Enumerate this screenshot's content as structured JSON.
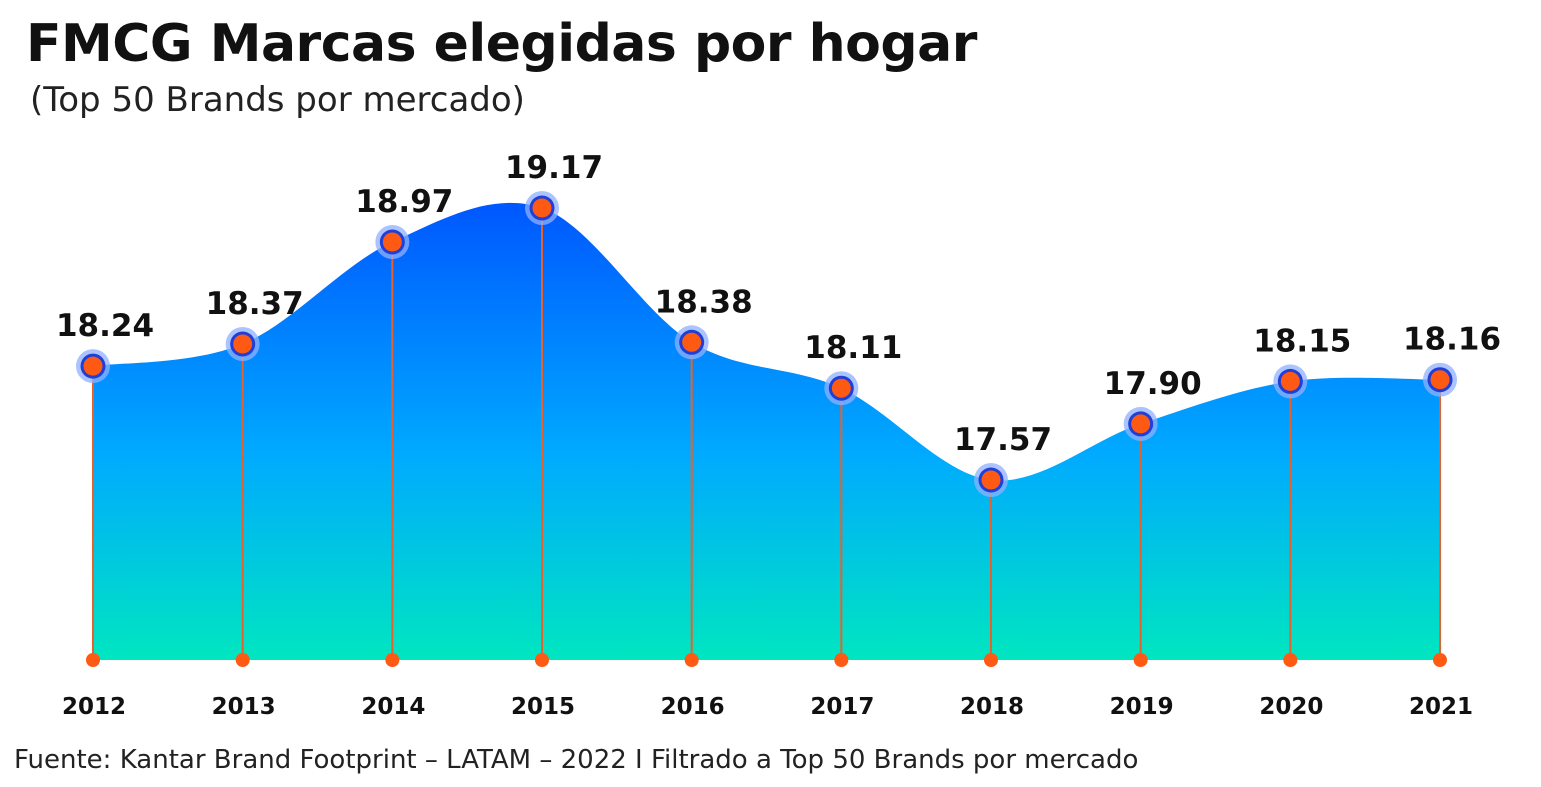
{
  "title": "FMCG Marcas elegidas por hogar",
  "subtitle": "(Top 50 Brands por mercado)",
  "source": "Fuente: Kantar Brand Footprint – LATAM – 2022 I Filtrado a Top 50 Brands por mercado",
  "colors": {
    "area_top": "#0057ff",
    "area_mid": "#00aaff",
    "area_bottom": "#00e6c0",
    "marker_fill": "#ff5a14",
    "marker_ring": "#1f3fd6",
    "stem": "#e8602c"
  },
  "chart_data": {
    "type": "area",
    "categories": [
      "2012",
      "2013",
      "2014",
      "2015",
      "2016",
      "2017",
      "2018",
      "2019",
      "2020",
      "2021"
    ],
    "values": [
      18.24,
      18.37,
      18.97,
      19.17,
      18.38,
      18.11,
      17.57,
      17.9,
      18.15,
      18.16
    ],
    "data_labels": [
      "18.24",
      "18.37",
      "18.97",
      "19.17",
      "18.38",
      "18.11",
      "17.57",
      "17.90",
      "18.15",
      "18.16"
    ],
    "xlabel": "",
    "ylabel": "",
    "grid": false,
    "legend": "none"
  }
}
